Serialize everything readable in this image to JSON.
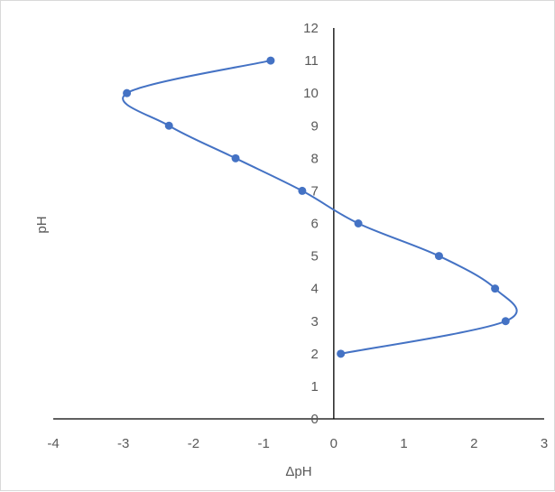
{
  "chart_data": {
    "type": "scatter",
    "title": "",
    "xlabel": "ΔpH",
    "ylabel": "pH",
    "xlim": [
      -4,
      3
    ],
    "ylim": [
      0,
      12
    ],
    "x_ticks": [
      "-4",
      "-3",
      "-2",
      "-1",
      "0",
      "1",
      "2",
      "3"
    ],
    "y_ticks": [
      "0",
      "1",
      "2",
      "3",
      "4",
      "5",
      "6",
      "7",
      "8",
      "9",
      "10",
      "11",
      "12"
    ],
    "grid": false,
    "legend": "none",
    "smooth_line": true,
    "series": [
      {
        "color": "#4472c4",
        "points": [
          {
            "x": 0.1,
            "y": 2
          },
          {
            "x": 2.45,
            "y": 3
          },
          {
            "x": 2.3,
            "y": 4
          },
          {
            "x": 1.5,
            "y": 5
          },
          {
            "x": 0.35,
            "y": 6
          },
          {
            "x": -0.45,
            "y": 7
          },
          {
            "x": -1.4,
            "y": 8
          },
          {
            "x": -2.35,
            "y": 9
          },
          {
            "x": -2.95,
            "y": 10
          },
          {
            "x": -0.9,
            "y": 11
          }
        ]
      }
    ]
  }
}
